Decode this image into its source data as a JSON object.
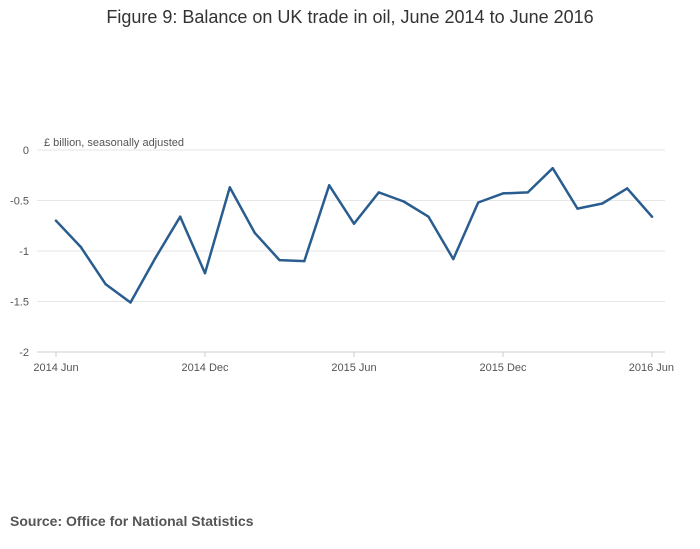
{
  "title": "Figure 9: Balance on UK trade in oil, June 2014 to June 2016",
  "source": "Source: Office for National Statistics",
  "chart_data": {
    "type": "line",
    "title": "Figure 9: Balance on UK trade in oil, June 2014 to June 2016",
    "xlabel": "",
    "ylabel": "£ billion, seasonally adjusted",
    "x": [
      "2014 Jun",
      "2014 Jul",
      "2014 Aug",
      "2014 Sep",
      "2014 Oct",
      "2014 Nov",
      "2014 Dec",
      "2015 Jan",
      "2015 Feb",
      "2015 Mar",
      "2015 Apr",
      "2015 May",
      "2015 Jun",
      "2015 Jul",
      "2015 Aug",
      "2015 Sep",
      "2015 Oct",
      "2015 Nov",
      "2015 Dec",
      "2016 Jan",
      "2016 Feb",
      "2016 Mar",
      "2016 Apr",
      "2016 May",
      "2016 Jun"
    ],
    "series": [
      {
        "values": [
          -0.7,
          -0.96,
          -1.33,
          -1.51,
          -1.07,
          -0.66,
          -1.22,
          -0.37,
          -0.82,
          -1.09,
          -1.1,
          -0.35,
          -0.73,
          -0.42,
          -0.51,
          -0.66,
          -1.08,
          -0.52,
          -0.43,
          -0.42,
          -0.18,
          -0.58,
          -0.53,
          -0.38,
          -0.66
        ],
        "color": "#2a5d8f"
      }
    ],
    "x_tick_labels": [
      "2014 Jun",
      "2014 Dec",
      "2015 Jun",
      "2015 Dec",
      "2016 Jun"
    ],
    "y_ticks": [
      "0",
      "-0.5",
      "-1",
      "-1.5",
      "-2"
    ],
    "ylim": [
      -2,
      0
    ],
    "grid": true,
    "legend": "none"
  }
}
